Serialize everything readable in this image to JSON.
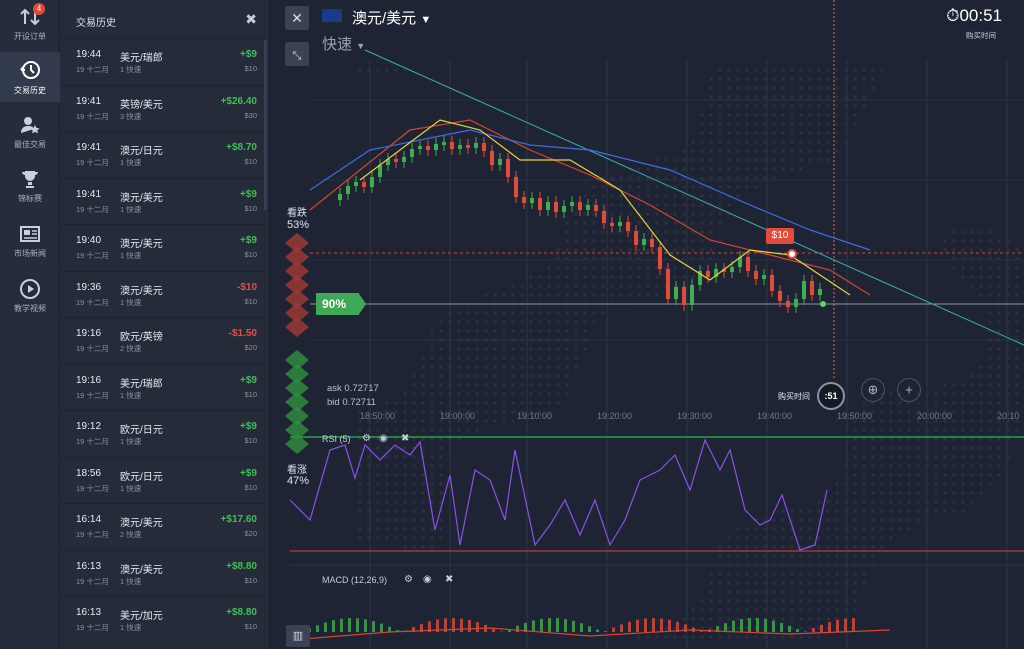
{
  "nav": {
    "items": [
      {
        "label": "开设订单",
        "icon": "arrows-updown-icon",
        "badge": "4"
      },
      {
        "label": "交易历史",
        "icon": "history-clock-icon",
        "active": true
      },
      {
        "label": "最佳交易",
        "icon": "top-trades-icon"
      },
      {
        "label": "锦标赛",
        "icon": "trophy-icon"
      },
      {
        "label": "市场新闻",
        "icon": "news-icon"
      },
      {
        "label": "教学视频",
        "icon": "play-video-icon"
      }
    ]
  },
  "history": {
    "title": "交易历史",
    "rows": [
      {
        "time": "19:44",
        "date": "19 十二月",
        "pair": "美元/瑞郎",
        "sub": "1 快速",
        "amount": "+$9",
        "stake": "$10",
        "win": true
      },
      {
        "time": "19:41",
        "date": "19 十二月",
        "pair": "英镑/美元",
        "sub": "3 快速",
        "amount": "+$26.40",
        "stake": "$30",
        "win": true
      },
      {
        "time": "19:41",
        "date": "19 十二月",
        "pair": "澳元/日元",
        "sub": "1 快速",
        "amount": "+$8.70",
        "stake": "$10",
        "win": true
      },
      {
        "time": "19:41",
        "date": "19 十二月",
        "pair": "澳元/美元",
        "sub": "1 快速",
        "amount": "+$9",
        "stake": "$10",
        "win": true
      },
      {
        "time": "19:40",
        "date": "19 十二月",
        "pair": "澳元/美元",
        "sub": "1 快速",
        "amount": "+$9",
        "stake": "$10",
        "win": true
      },
      {
        "time": "19:36",
        "date": "19 十二月",
        "pair": "澳元/美元",
        "sub": "1 快速",
        "amount": "-$10",
        "stake": "$10",
        "win": false
      },
      {
        "time": "19:16",
        "date": "19 十二月",
        "pair": "欧元/英镑",
        "sub": "2 快速",
        "amount": "-$1.50",
        "stake": "$20",
        "win": false
      },
      {
        "time": "19:16",
        "date": "19 十二月",
        "pair": "美元/瑞郎",
        "sub": "1 快速",
        "amount": "+$9",
        "stake": "$10",
        "win": true
      },
      {
        "time": "19:12",
        "date": "19 十二月",
        "pair": "欧元/日元",
        "sub": "1 快速",
        "amount": "+$9",
        "stake": "$10",
        "win": true
      },
      {
        "time": "18:56",
        "date": "19 十二月",
        "pair": "欧元/日元",
        "sub": "1 快速",
        "amount": "+$9",
        "stake": "$10",
        "win": true
      },
      {
        "time": "16:14",
        "date": "19 十二月",
        "pair": "澳元/美元",
        "sub": "2 快速",
        "amount": "+$17.60",
        "stake": "$20",
        "win": true
      },
      {
        "time": "16:13",
        "date": "19 十二月",
        "pair": "澳元/美元",
        "sub": "1 快速",
        "amount": "+$8.80",
        "stake": "$10",
        "win": true
      },
      {
        "time": "16:13",
        "date": "19 十二月",
        "pair": "美元/加元",
        "sub": "1 快速",
        "amount": "+$8.80",
        "stake": "$10",
        "win": true
      }
    ]
  },
  "chart": {
    "asset": "澳元/美元",
    "mode": "快速",
    "timer": "00:51",
    "timer_label": "购买时间",
    "put_label": "看跌",
    "put_pct": "53%",
    "call_label": "看涨",
    "call_pct": "47%",
    "payout": "90%",
    "price_tag": "$10",
    "ask": "ask 0.72717",
    "bid": "bid 0.72711",
    "buy_time_label": "购买时间",
    "buy_time_value": ":51",
    "x_ticks": [
      "18:50:00",
      "19:00:00",
      "19:10:00",
      "19:20:00",
      "19:30:00",
      "19:40:00",
      "19:50:00",
      "20:00:00",
      "20:10"
    ],
    "rsi_label": "RSI (5)",
    "macd_label": "MACD (12,26,9)",
    "colors": {
      "up": "#3fae4f",
      "down": "#e04b3a",
      "rsi": "#8a52e6",
      "ma_yellow": "#e6d23a",
      "ma_blue": "#3f6de0",
      "ma_red": "#d8452e",
      "trend": "#3ab0b0"
    }
  }
}
